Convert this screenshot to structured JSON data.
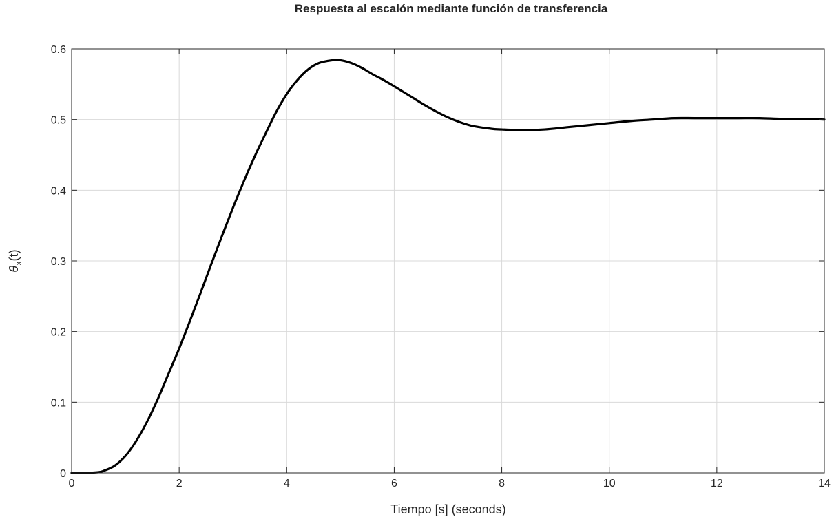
{
  "chart_data": {
    "type": "line",
    "title": "Respuesta al escalón mediante función de transferencia",
    "xlabel": "Tiempo [s] (seconds)",
    "ylabel": {
      "symbol": "θ",
      "subscript": "x",
      "suffix": "(t)"
    },
    "xlim": [
      0,
      14
    ],
    "ylim": [
      0,
      0.6
    ],
    "xticks": [
      0,
      2,
      4,
      6,
      8,
      10,
      12,
      14
    ],
    "xtick_labels": [
      "0",
      "2",
      "4",
      "6",
      "8",
      "10",
      "12",
      "14"
    ],
    "yticks": [
      0,
      0.1,
      0.2,
      0.3,
      0.4,
      0.5,
      0.6
    ],
    "ytick_labels": [
      "0",
      "0.1",
      "0.2",
      "0.3",
      "0.4",
      "0.5",
      "0.6"
    ],
    "grid": true,
    "line_color": "#000000",
    "series": [
      {
        "x": [
          0,
          0.25,
          0.5,
          0.6,
          0.8,
          1.0,
          1.2,
          1.4,
          1.6,
          1.8,
          2.0,
          2.2,
          2.4,
          2.6,
          2.8,
          3.0,
          3.2,
          3.4,
          3.6,
          3.8,
          4.0,
          4.2,
          4.4,
          4.6,
          4.85,
          5.0,
          5.2,
          5.4,
          5.6,
          5.8,
          6.0,
          6.3,
          6.6,
          7.0,
          7.4,
          7.8,
          8.0,
          8.4,
          8.8,
          9.2,
          9.6,
          10.0,
          10.4,
          10.8,
          11.2,
          11.6,
          12.0,
          12.4,
          12.8,
          13.2,
          13.6,
          14.0
        ],
        "y": [
          0,
          0,
          0.001,
          0.003,
          0.01,
          0.024,
          0.045,
          0.072,
          0.104,
          0.14,
          0.176,
          0.215,
          0.255,
          0.296,
          0.336,
          0.375,
          0.412,
          0.447,
          0.479,
          0.51,
          0.536,
          0.556,
          0.571,
          0.58,
          0.584,
          0.584,
          0.58,
          0.573,
          0.564,
          0.556,
          0.547,
          0.533,
          0.519,
          0.503,
          0.492,
          0.487,
          0.486,
          0.485,
          0.486,
          0.489,
          0.492,
          0.495,
          0.498,
          0.5,
          0.502,
          0.502,
          0.502,
          0.502,
          0.502,
          0.501,
          0.501,
          0.5
        ]
      }
    ]
  }
}
